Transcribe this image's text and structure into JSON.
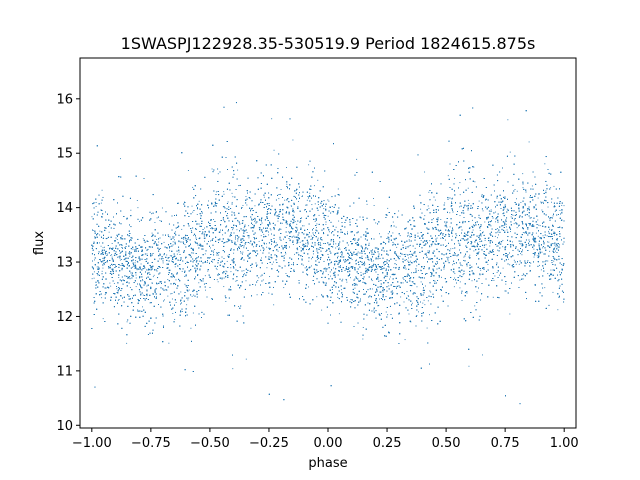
{
  "chart_data": {
    "type": "scatter",
    "title": "1SWASPJ122928.35-530519.9 Period 1824615.875s",
    "xlabel": "phase",
    "ylabel": "flux",
    "xlim": [
      -1.05,
      1.05
    ],
    "ylim": [
      9.95,
      16.75
    ],
    "x_ticks": [
      -1.0,
      -0.75,
      -0.5,
      -0.25,
      0.0,
      0.25,
      0.5,
      0.75,
      1.0
    ],
    "x_tick_labels": [
      "−1.00",
      "−0.75",
      "−0.50",
      "−0.25",
      "0.00",
      "0.25",
      "0.50",
      "0.75",
      "1.00"
    ],
    "y_ticks": [
      10,
      11,
      12,
      13,
      14,
      15,
      16
    ],
    "y_tick_labels": [
      "10",
      "11",
      "12",
      "13",
      "14",
      "15",
      "16"
    ],
    "grid": false,
    "legend": "none",
    "point_color": "#1f77b4",
    "phase_profile": {
      "phase": [
        0.0,
        0.1,
        0.2,
        0.3,
        0.4,
        0.5,
        0.6,
        0.7,
        0.8,
        0.9,
        1.0
      ],
      "mean_flux": [
        13.2,
        13.05,
        12.85,
        12.85,
        13.1,
        13.3,
        13.45,
        13.5,
        13.65,
        13.5,
        13.35
      ],
      "scatter_sigma": 0.55
    },
    "points_per_phase_cycle": 9000,
    "note_on_symmetry": "phase range -1 to 0 repeats 0 to 1"
  }
}
